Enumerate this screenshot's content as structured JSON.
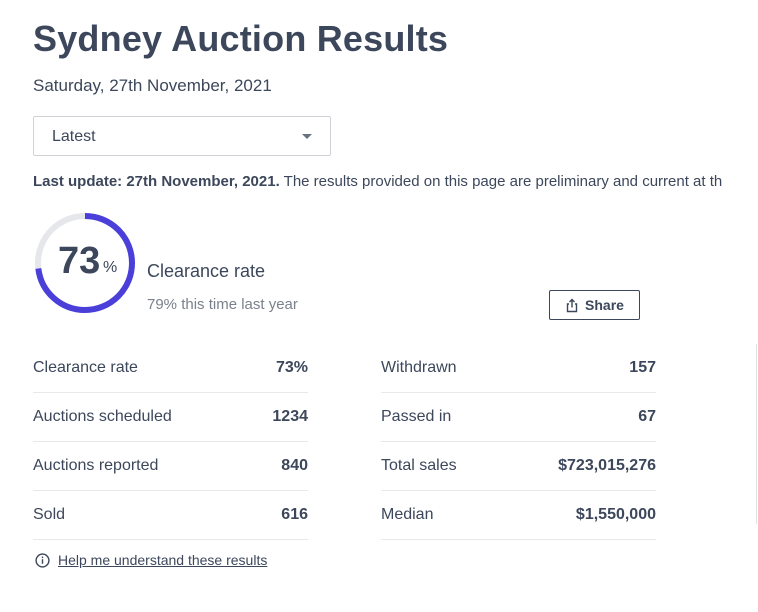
{
  "header": {
    "title": "Sydney Auction Results",
    "date": "Saturday, 27th November, 2021"
  },
  "filter": {
    "selected": "Latest"
  },
  "update": {
    "bold": "Last update: 27th November, 2021.",
    "text": " The results provided on this page are preliminary and current at th"
  },
  "summary": {
    "clearance_value": "73",
    "clearance_unit": "%",
    "clearance_fraction": 0.73,
    "clearance_label": "Clearance rate",
    "last_year": "79% this time last year",
    "share_label": "Share"
  },
  "stats_left": [
    {
      "label": "Clearance rate",
      "value": "73%"
    },
    {
      "label": "Auctions scheduled",
      "value": "1234"
    },
    {
      "label": "Auctions reported",
      "value": "840"
    },
    {
      "label": "Sold",
      "value": "616"
    }
  ],
  "stats_right": [
    {
      "label": "Withdrawn",
      "value": "157"
    },
    {
      "label": "Passed in",
      "value": "67"
    },
    {
      "label": "Total sales",
      "value": "$723,015,276"
    },
    {
      "label": "Median",
      "value": "$1,550,000"
    }
  ],
  "help": {
    "link": "Help me understand these results"
  },
  "colors": {
    "ring_accent": "#4a3fd9",
    "ring_track": "#e5e7eb",
    "text": "#3c475b",
    "muted": "#7a818c"
  },
  "icons": {
    "dropdown": "chevron-down-icon",
    "share": "share-icon",
    "help": "info-icon"
  }
}
